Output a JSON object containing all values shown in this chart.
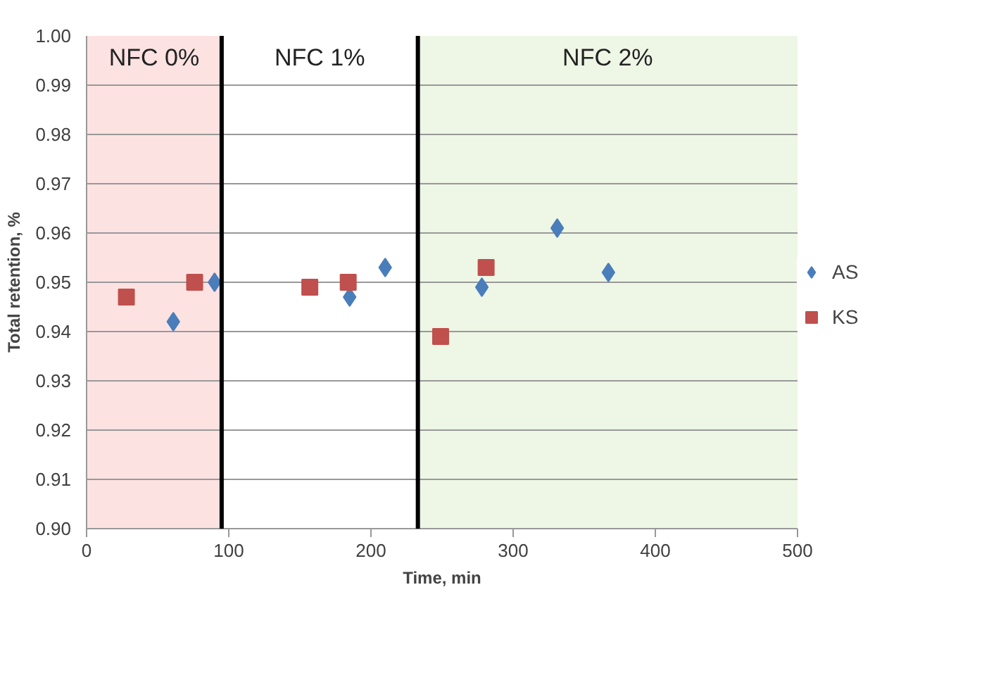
{
  "chart_data": {
    "type": "scatter",
    "xlabel": "Time, min",
    "ylabel": "Total retention, %",
    "xlim": [
      0,
      500
    ],
    "xticks": [
      0,
      100,
      200,
      300,
      400,
      500
    ],
    "ylim": [
      0.9,
      1.0
    ],
    "yticks": [
      {
        "value": 0.9,
        "label": "0.90"
      },
      {
        "value": 0.91,
        "label": "0.91"
      },
      {
        "value": 0.92,
        "label": "0.92"
      },
      {
        "value": 0.93,
        "label": "0.93"
      },
      {
        "value": 0.94,
        "label": "0.94"
      },
      {
        "value": 0.95,
        "label": "0.95"
      },
      {
        "value": 0.96,
        "label": "0.96"
      },
      {
        "value": 0.97,
        "label": "0.97"
      },
      {
        "value": 0.98,
        "label": "0.98"
      },
      {
        "value": 0.99,
        "label": "0.99"
      },
      {
        "value": 1.0,
        "label": "1.00"
      }
    ],
    "grid": "y",
    "legend": "right",
    "series": [
      {
        "name": "AS",
        "color": "#4a7ebb",
        "marker": "diamond",
        "x": [
          61,
          90,
          185,
          210,
          278,
          331,
          367
        ],
        "values": [
          0.942,
          0.95,
          0.947,
          0.953,
          0.949,
          0.961,
          0.952
        ]
      },
      {
        "name": "KS",
        "color": "#c0504d",
        "marker": "square",
        "x": [
          28,
          76,
          157,
          184,
          249,
          281
        ],
        "values": [
          0.947,
          0.95,
          0.949,
          0.95,
          0.939,
          0.953
        ]
      }
    ],
    "bands": [
      {
        "axis": "x",
        "from": 0,
        "to": 95,
        "label": "NFC 0%",
        "color": "#fde2e2"
      },
      {
        "axis": "x",
        "from": 233,
        "to": 500,
        "label": "NFC 2%",
        "color": "#eef6e6"
      }
    ],
    "annotations": [
      "NFC 1%"
    ],
    "ref_lines": [
      {
        "axis": "x",
        "value": 95,
        "color": "#000000"
      },
      {
        "axis": "x",
        "value": 233,
        "color": "#000000"
      }
    ]
  }
}
